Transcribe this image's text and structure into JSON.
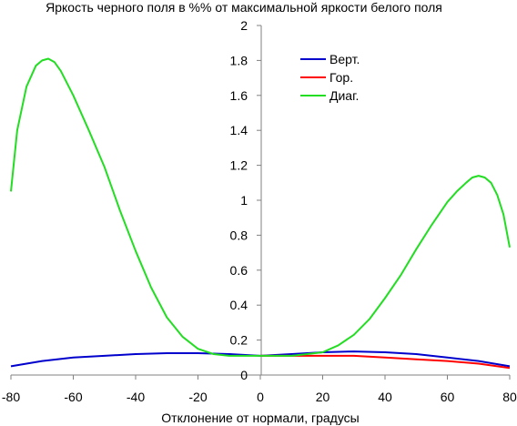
{
  "chart_data": {
    "type": "line",
    "title": "Яркость черного поля в %% от максимальной яркости белого поля",
    "xlabel": "Отклонение от нормали, градусы",
    "ylabel": "",
    "xlim": [
      -80,
      80
    ],
    "ylim": [
      0,
      2
    ],
    "x_ticks": [
      "-80",
      "-60",
      "-40",
      "-20",
      "0",
      "20",
      "40",
      "60",
      "80"
    ],
    "y_ticks": [
      "0",
      "0.2",
      "0.4",
      "0.6",
      "0.8",
      "1",
      "1.2",
      "1.4",
      "1.6",
      "1.8",
      "2"
    ],
    "grid": false,
    "legend": "top-center",
    "series": [
      {
        "name": "Верт.",
        "color": "#0000cc",
        "x": [
          -80,
          -70,
          -60,
          -50,
          -40,
          -30,
          -20,
          -10,
          0,
          10,
          20,
          30,
          40,
          50,
          60,
          70,
          80
        ],
        "y": [
          0.05,
          0.08,
          0.1,
          0.11,
          0.12,
          0.125,
          0.125,
          0.12,
          0.11,
          0.12,
          0.13,
          0.135,
          0.13,
          0.12,
          0.1,
          0.08,
          0.05
        ]
      },
      {
        "name": "Гор.",
        "color": "#ff0000",
        "x": [
          0,
          10,
          20,
          30,
          40,
          50,
          60,
          70,
          80
        ],
        "y": [
          0.11,
          0.11,
          0.11,
          0.11,
          0.1,
          0.09,
          0.08,
          0.065,
          0.04
        ]
      },
      {
        "name": "Диаг.",
        "color": "#22dd22",
        "x": [
          -80,
          -78,
          -75,
          -72,
          -70,
          -68,
          -66,
          -64,
          -60,
          -55,
          -50,
          -45,
          -40,
          -35,
          -30,
          -25,
          -20,
          -15,
          -10,
          -5,
          0,
          5,
          10,
          15,
          20,
          25,
          30,
          35,
          40,
          45,
          50,
          55,
          60,
          63,
          66,
          68,
          70,
          72,
          74,
          76,
          78,
          80
        ],
        "y": [
          1.05,
          1.4,
          1.65,
          1.77,
          1.8,
          1.81,
          1.79,
          1.74,
          1.6,
          1.4,
          1.19,
          0.94,
          0.71,
          0.5,
          0.33,
          0.22,
          0.15,
          0.12,
          0.11,
          0.11,
          0.11,
          0.11,
          0.11,
          0.12,
          0.13,
          0.17,
          0.23,
          0.32,
          0.44,
          0.57,
          0.72,
          0.86,
          0.99,
          1.05,
          1.1,
          1.13,
          1.14,
          1.13,
          1.1,
          1.03,
          0.92,
          0.73
        ]
      }
    ]
  }
}
